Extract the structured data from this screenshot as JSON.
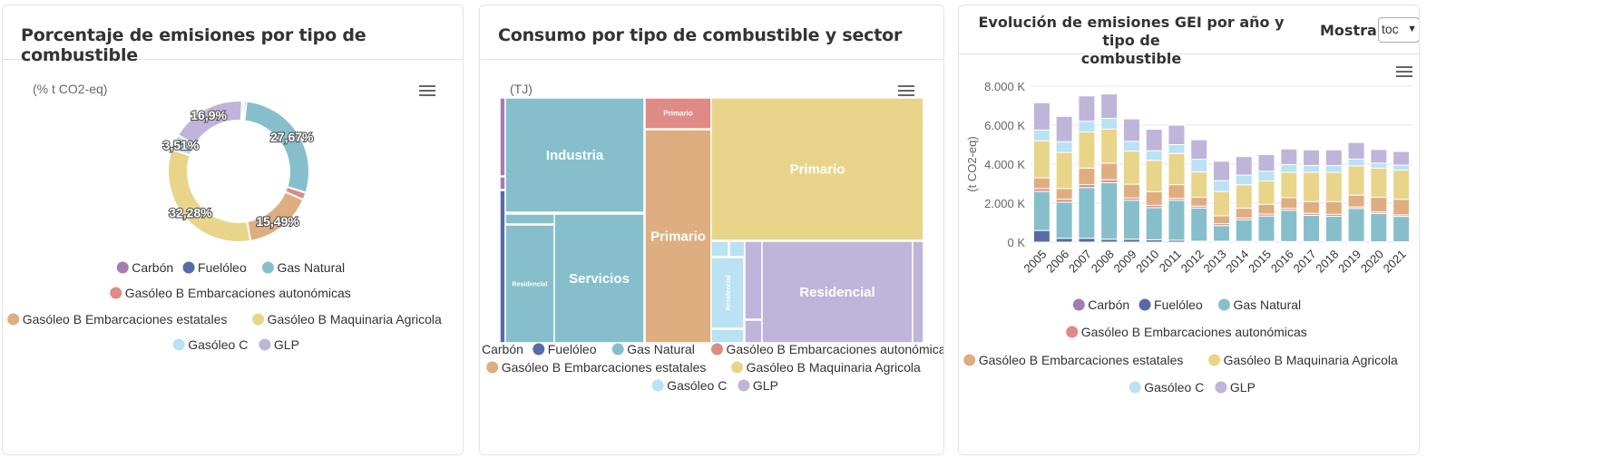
{
  "colors": {
    "Carbón": "#a57db0",
    "Fuelóleo": "#5a6aa8",
    "Gas Natural": "#86bfcb",
    "Gasóleo B Embarcaciones autonómicas": "#e08a86",
    "Gasóleo B Embarcaciones estatales": "#deae80",
    "Gasóleo B Maquinaria Agricola": "#e8d58a",
    "Gasóleo C": "#b9e2f3",
    "GLP": "#bfb5da"
  },
  "panel1": {
    "title": "Porcentaje de emisiones por tipo de combustible",
    "unit": "(% t CO2-eq)",
    "menu_icon": "hamburger-menu-icon"
  },
  "panel2": {
    "title": "Consumo por tipo de combustible y sector",
    "unit": "(TJ)",
    "menu_icon": "hamburger-menu-icon"
  },
  "panel3": {
    "title_line1": "Evolución de emisiones GEI por año y tipo de",
    "title_line2": "combustible",
    "show_label": "Mostrar",
    "show_value": "toc",
    "menu_icon": "hamburger-menu-icon"
  },
  "chart_data": [
    {
      "type": "pie",
      "donut": true,
      "unit": "(% t CO2-eq)",
      "slices": [
        {
          "name": "Carbón",
          "value": 0.5
        },
        {
          "name": "Fuelóleo",
          "value": 0.5
        },
        {
          "name": "Gas Natural",
          "value": 27.67
        },
        {
          "name": "Gasóleo B Embarcaciones autonómicas",
          "value": 1.65
        },
        {
          "name": "Gasóleo B Embarcaciones estatales",
          "value": 15.49
        },
        {
          "name": "Gasóleo B Maquinaria Agricola",
          "value": 32.28
        },
        {
          "name": "Gasóleo C",
          "value": 3.51
        },
        {
          "name": "GLP",
          "value": 16.9
        }
      ],
      "labels": [
        {
          "text": "27,67%",
          "slice": "Gas Natural"
        },
        {
          "text": "15,49%",
          "slice": "Gasóleo B Embarcaciones estatales"
        },
        {
          "text": "32,28%",
          "slice": "Gasóleo B Maquinaria Agricola"
        },
        {
          "text": "3,51%",
          "slice": "Gasóleo C"
        },
        {
          "text": "16,9%",
          "slice": "GLP"
        }
      ],
      "legend": [
        "Carbón",
        "Fuelóleo",
        "Gas Natural",
        "Gasóleo B Embarcaciones autonómicas",
        "Gasóleo B Embarcaciones estatales",
        "Gasóleo B Maquinaria Agricola",
        "Gasóleo C",
        "GLP"
      ]
    },
    {
      "type": "treemap",
      "unit": "(TJ)",
      "tiles": [
        {
          "fuel": "Carbón",
          "sector": "Industria",
          "label": ""
        },
        {
          "fuel": "Carbón",
          "sector": "",
          "label": ""
        },
        {
          "fuel": "Fuelóleo",
          "sector": "Industria",
          "label": ""
        },
        {
          "fuel": "Gas Natural",
          "sector": "Industria",
          "label": "Industria"
        },
        {
          "fuel": "Gas Natural",
          "sector": "",
          "label": ""
        },
        {
          "fuel": "Gas Natural",
          "sector": "Residencial",
          "label": "Residencial"
        },
        {
          "fuel": "Gas Natural",
          "sector": "Servicios",
          "label": "Servicios"
        },
        {
          "fuel": "Gasóleo B Embarcaciones autonómicas",
          "sector": "Primario",
          "label": "Primario"
        },
        {
          "fuel": "Gasóleo B Embarcaciones estatales",
          "sector": "Primario",
          "label": "Primario"
        },
        {
          "fuel": "Gasóleo B Maquinaria Agricola",
          "sector": "Primario",
          "label": "Primario"
        },
        {
          "fuel": "Gasóleo C",
          "sector": "",
          "label": ""
        },
        {
          "fuel": "Gasóleo C",
          "sector": "",
          "label": ""
        },
        {
          "fuel": "Gasóleo C",
          "sector": "Residencial",
          "label": "Residencial"
        },
        {
          "fuel": "Gasóleo C",
          "sector": "",
          "label": ""
        },
        {
          "fuel": "GLP",
          "sector": "",
          "label": ""
        },
        {
          "fuel": "GLP",
          "sector": "",
          "label": ""
        },
        {
          "fuel": "GLP",
          "sector": "Residencial",
          "label": "Residencial"
        },
        {
          "fuel": "GLP",
          "sector": "",
          "label": ""
        }
      ],
      "legend": [
        "Carbón",
        "Fuelóleo",
        "Gas Natural",
        "Gasóleo B Embarcaciones autonómicas",
        "Gasóleo B Embarcaciones estatales",
        "Gasóleo B Maquinaria Agricola",
        "Gasóleo C",
        "GLP"
      ]
    },
    {
      "type": "bar",
      "stacked": true,
      "ylabel": "(t CO2-eq)",
      "ylim": [
        0,
        8000
      ],
      "yticks": [
        0,
        2000,
        4000,
        6000,
        8000
      ],
      "ytick_labels": [
        "0 K",
        "2.000 K",
        "4.000 K",
        "6.000 K",
        "8.000 K"
      ],
      "grid": true,
      "categories": [
        "2005",
        "2006",
        "2007",
        "2008",
        "2009",
        "2010",
        "2011",
        "2012",
        "2013",
        "2014",
        "2015",
        "2016",
        "2017",
        "2018",
        "2019",
        "2020",
        "2021"
      ],
      "series": [
        {
          "name": "Carbón",
          "values": [
            0,
            0,
            0,
            0,
            0,
            0,
            0,
            0,
            0,
            0,
            0,
            0,
            0,
            0,
            0,
            0,
            0
          ]
        },
        {
          "name": "Fuelóleo",
          "values": [
            600,
            200,
            200,
            150,
            150,
            120,
            100,
            50,
            50,
            40,
            40,
            30,
            30,
            30,
            30,
            20,
            20
          ]
        },
        {
          "name": "Gas Natural",
          "values": [
            2000,
            1850,
            2600,
            2900,
            2000,
            1650,
            2050,
            1700,
            800,
            1100,
            1300,
            1600,
            1350,
            1300,
            1700,
            1450,
            1300
          ]
        },
        {
          "name": "Gasóleo B Embarcaciones autonómicas",
          "values": [
            150,
            150,
            150,
            150,
            120,
            120,
            100,
            100,
            100,
            100,
            100,
            100,
            100,
            100,
            80,
            80,
            80
          ]
        },
        {
          "name": "Gasóleo B Embarcaciones estatales",
          "values": [
            550,
            550,
            850,
            850,
            700,
            700,
            700,
            450,
            400,
            500,
            500,
            550,
            600,
            650,
            600,
            750,
            800
          ]
        },
        {
          "name": "Gasóleo B Maquinaria Agricola",
          "values": [
            1900,
            1850,
            1850,
            1750,
            1700,
            1600,
            1600,
            1300,
            1250,
            1200,
            1200,
            1300,
            1500,
            1500,
            1500,
            1500,
            1500
          ]
        },
        {
          "name": "Gasóleo C",
          "values": [
            550,
            550,
            550,
            550,
            500,
            500,
            450,
            650,
            550,
            500,
            500,
            400,
            350,
            350,
            350,
            250,
            250
          ]
        },
        {
          "name": "GLP",
          "values": [
            1400,
            1300,
            1300,
            1250,
            1150,
            1100,
            1000,
            1000,
            1000,
            950,
            850,
            800,
            800,
            800,
            850,
            700,
            700
          ]
        }
      ],
      "legend": [
        "Carbón",
        "Fuelóleo",
        "Gas Natural",
        "Gasóleo B Embarcaciones autonómicas",
        "Gasóleo B Embarcaciones estatales",
        "Gasóleo B Maquinaria Agricola",
        "Gasóleo C",
        "GLP"
      ]
    }
  ]
}
